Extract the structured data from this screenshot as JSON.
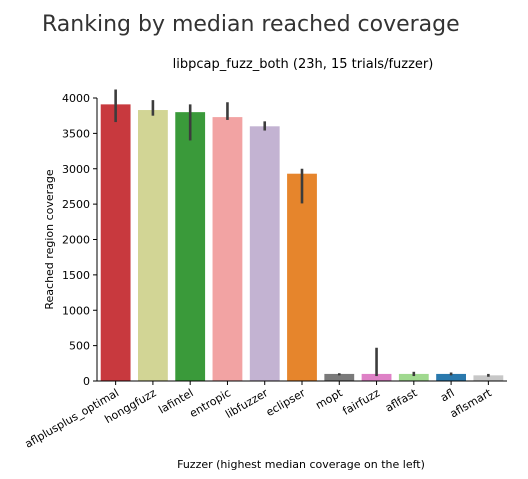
{
  "page_title": "Ranking by median reached coverage",
  "chart_data": {
    "type": "bar",
    "title": "libpcap_fuzz_both (23h, 15 trials/fuzzer)",
    "xlabel": "Fuzzer (highest median coverage on the left)",
    "ylabel": "Reached region coverage",
    "ylim": [
      0,
      4000
    ],
    "yticks": [
      0,
      500,
      1000,
      1500,
      2000,
      2500,
      3000,
      3500,
      4000
    ],
    "grid": false,
    "categories": [
      "aflplusplus_optimal",
      "honggfuzz",
      "lafintel",
      "entropic",
      "libfuzzer",
      "eclipser",
      "mopt",
      "fairfuzz",
      "aflfast",
      "afl",
      "aflsmart"
    ],
    "values": [
      3910,
      3830,
      3800,
      3730,
      3600,
      2930,
      100,
      100,
      100,
      100,
      80
    ],
    "error_low": [
      3660,
      3750,
      3400,
      3690,
      3540,
      2510,
      80,
      70,
      70,
      80,
      60
    ],
    "error_high": [
      4120,
      3970,
      3910,
      3940,
      3670,
      3000,
      110,
      470,
      130,
      120,
      100
    ],
    "colors": [
      "#c8393e",
      "#d2d595",
      "#3a9a3a",
      "#f2a3a3",
      "#c3b3d2",
      "#e6852c",
      "#7a7a7a",
      "#de81c6",
      "#a0d98f",
      "#2a79ad",
      "#c7c7c7"
    ]
  }
}
